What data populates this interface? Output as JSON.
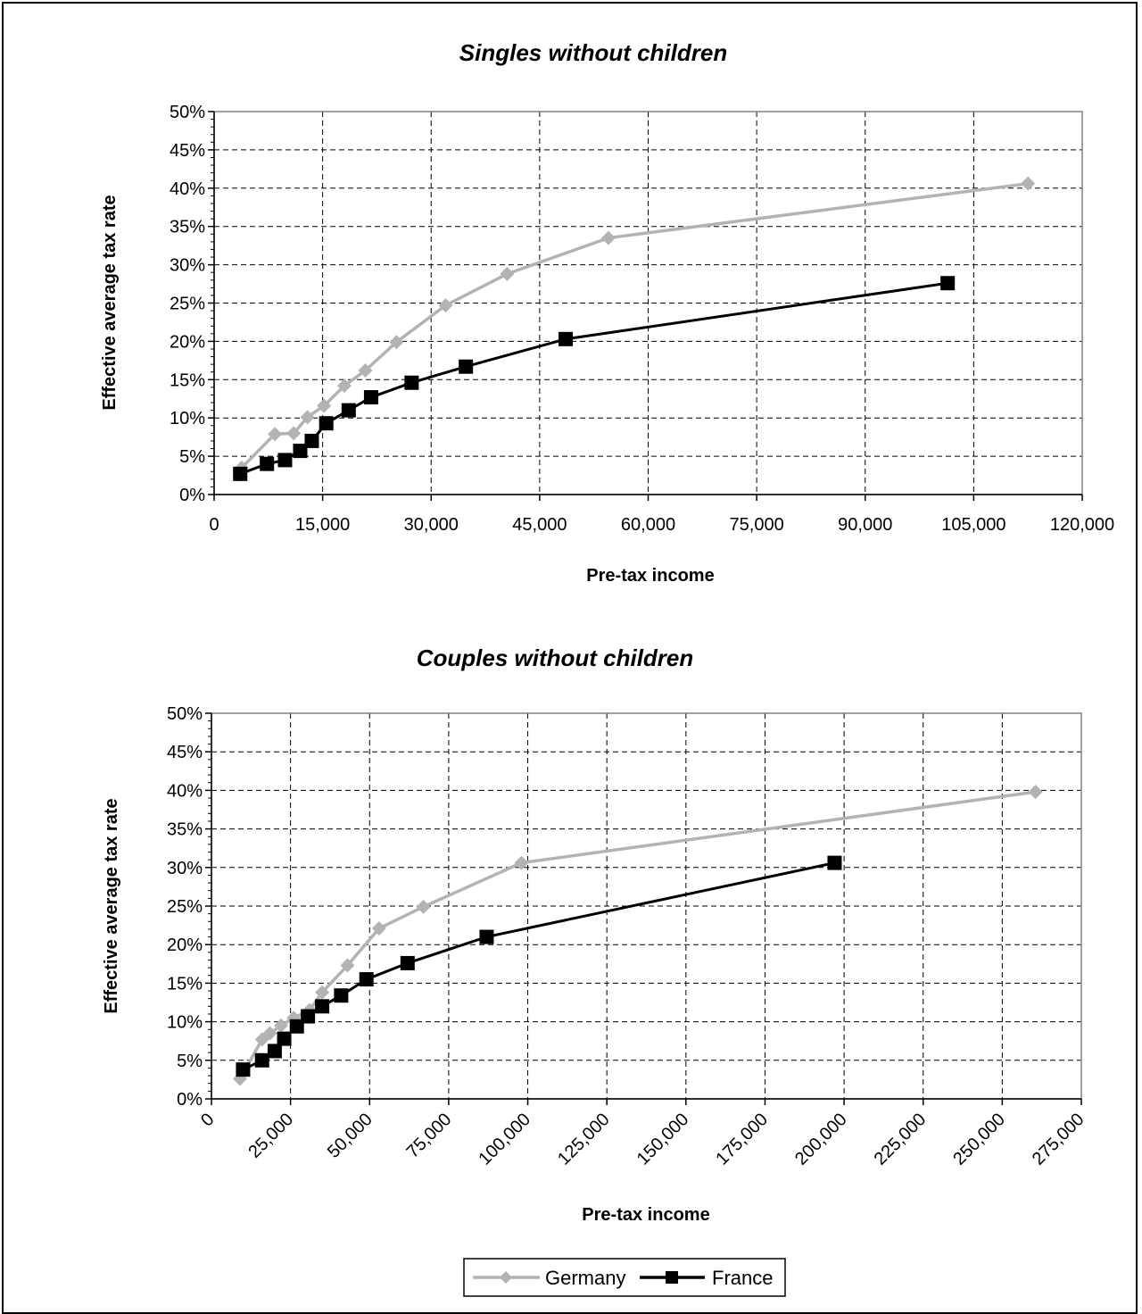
{
  "colors": {
    "germany": "#b3b3b3",
    "france": "#000000",
    "grid": "#000000"
  },
  "legend": {
    "germany_label": "Germany",
    "france_label": "France",
    "placement": "bottom-center"
  },
  "chart_data": [
    {
      "type": "line",
      "title": "Singles without children",
      "xlabel": "Pre-tax income",
      "ylabel": "Effective average tax rate",
      "xlim": [
        0,
        120000
      ],
      "ylim": [
        0,
        0.5
      ],
      "x_ticks": [
        "0",
        "15,000",
        "30,000",
        "45,000",
        "60,000",
        "75,000",
        "90,000",
        "105,000",
        "120,000"
      ],
      "y_ticks": [
        "0%",
        "5%",
        "10%",
        "15%",
        "20%",
        "25%",
        "30%",
        "35%",
        "40%",
        "45%",
        "50%"
      ],
      "grid": true,
      "series": [
        {
          "name": "Germany",
          "marker": "diamond",
          "x": [
            3800,
            8400,
            11000,
            12900,
            15200,
            18000,
            20900,
            25200,
            32000,
            40500,
            54500,
            112500
          ],
          "y": [
            0.035,
            0.079,
            0.08,
            0.101,
            0.116,
            0.142,
            0.162,
            0.199,
            0.247,
            0.288,
            0.335,
            0.406
          ]
        },
        {
          "name": "France",
          "marker": "square",
          "x": [
            3600,
            7300,
            9800,
            11900,
            13500,
            15500,
            18600,
            21700,
            27300,
            34800,
            48600,
            101400
          ],
          "y": [
            0.027,
            0.04,
            0.045,
            0.057,
            0.07,
            0.093,
            0.11,
            0.127,
            0.146,
            0.167,
            0.203,
            0.276
          ]
        }
      ]
    },
    {
      "type": "line",
      "title": "Couples without children",
      "xlabel": "Pre-tax income",
      "ylabel": "Effective average tax rate",
      "xlim": [
        0,
        275000
      ],
      "ylim": [
        0,
        0.5
      ],
      "x_ticks": [
        "0",
        "25,000",
        "50,000",
        "75,000",
        "100,000",
        "125,000",
        "150,000",
        "175,000",
        "200,000",
        "225,000",
        "250,000",
        "275,000"
      ],
      "y_ticks": [
        "0%",
        "5%",
        "10%",
        "15%",
        "20%",
        "25%",
        "30%",
        "35%",
        "40%",
        "45%",
        "50%"
      ],
      "grid": true,
      "series": [
        {
          "name": "Germany",
          "marker": "diamond",
          "x": [
            9000,
            16000,
            18500,
            22000,
            26000,
            31000,
            35000,
            43000,
            53000,
            67000,
            98000,
            260500
          ],
          "y": [
            0.026,
            0.077,
            0.085,
            0.095,
            0.105,
            0.115,
            0.138,
            0.173,
            0.221,
            0.249,
            0.306,
            0.398
          ]
        },
        {
          "name": "France",
          "marker": "square",
          "x": [
            10000,
            16000,
            20000,
            23000,
            27000,
            30500,
            35000,
            41000,
            49000,
            62000,
            87000,
            197000
          ],
          "y": [
            0.038,
            0.05,
            0.062,
            0.078,
            0.094,
            0.107,
            0.12,
            0.134,
            0.155,
            0.176,
            0.21,
            0.306
          ]
        }
      ]
    }
  ]
}
